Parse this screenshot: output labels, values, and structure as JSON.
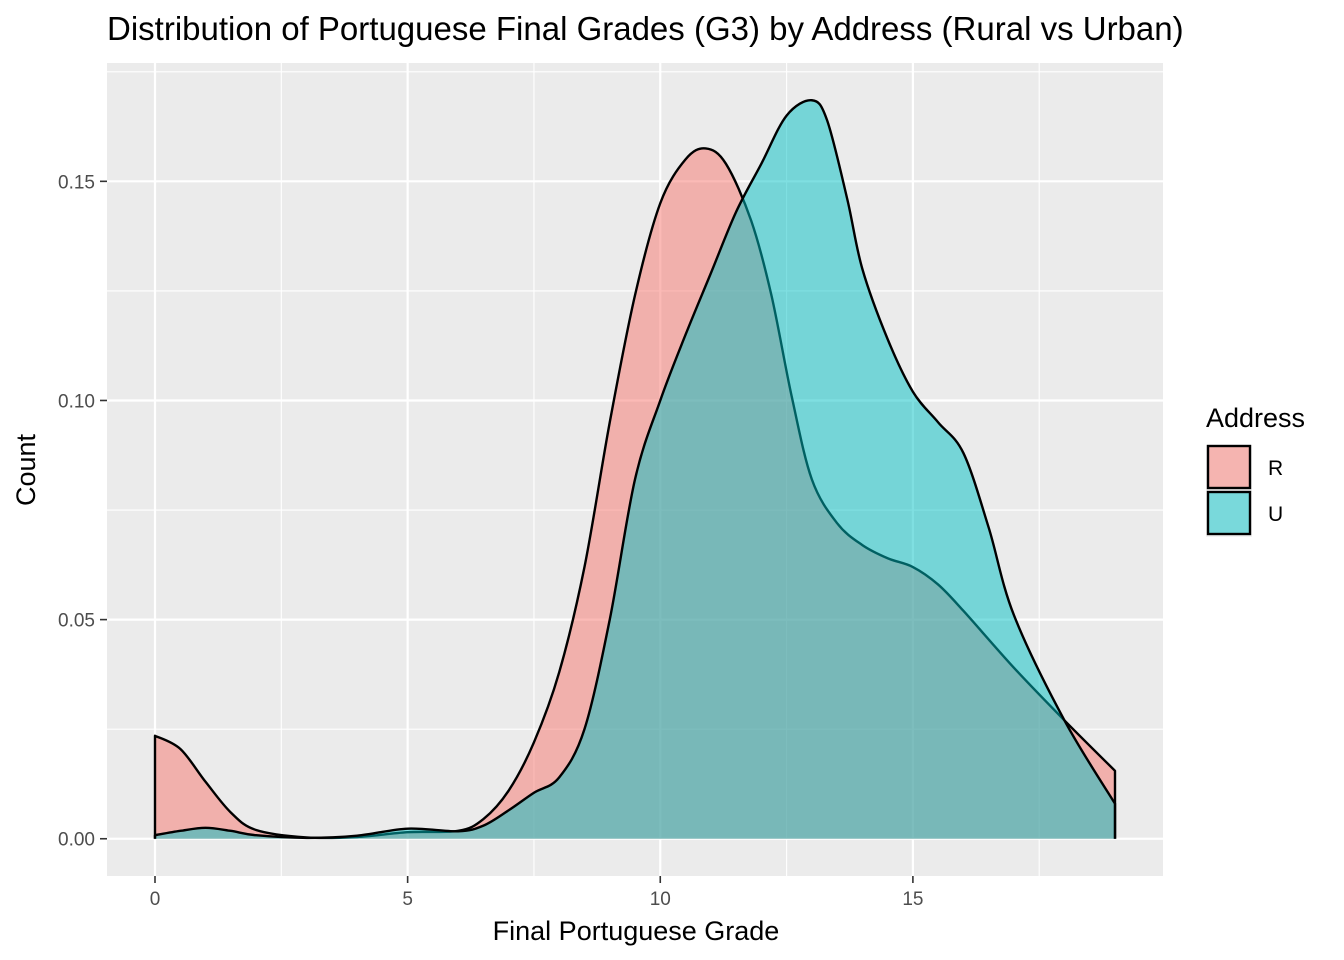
{
  "chart_data": {
    "type": "area",
    "title": "Distribution of Portuguese Final Grades (G3) by Address (Rural vs Urban)",
    "xlabel": "Final Portuguese Grade",
    "ylabel": "Count",
    "xlim": [
      -0.95,
      19.95
    ],
    "ylim": [
      -0.0085,
      0.177
    ],
    "x_ticks": [
      0,
      5,
      10,
      15
    ],
    "x_tick_labels": [
      "0",
      "5",
      "10",
      "15"
    ],
    "y_ticks": [
      0.0,
      0.05,
      0.1,
      0.15
    ],
    "y_tick_labels": [
      "0.00",
      "0.05",
      "0.10",
      "0.15"
    ],
    "grid": true,
    "legend": {
      "title": "Address",
      "placement": "right"
    },
    "series": [
      {
        "name": "R",
        "color": "#F8766D",
        "x": [
          0,
          0.5,
          1,
          1.5,
          2,
          3,
          4,
          5,
          6,
          6.5,
          7,
          7.5,
          8,
          8.5,
          9,
          9.5,
          10,
          10.5,
          10.9,
          11.3,
          11.8,
          12.2,
          12.6,
          13,
          13.5,
          14,
          14.5,
          15,
          15.5,
          16,
          17,
          18,
          19
        ],
        "y": [
          0.0235,
          0.0205,
          0.013,
          0.006,
          0.002,
          0.0003,
          0.0004,
          0.0015,
          0.0018,
          0.0045,
          0.011,
          0.022,
          0.038,
          0.062,
          0.095,
          0.124,
          0.145,
          0.155,
          0.1575,
          0.154,
          0.141,
          0.124,
          0.101,
          0.082,
          0.072,
          0.067,
          0.064,
          0.062,
          0.058,
          0.052,
          0.039,
          0.027,
          0.0155
        ]
      },
      {
        "name": "U",
        "color": "#00BFC4",
        "x": [
          0,
          0.5,
          1,
          1.5,
          2,
          3,
          4,
          5,
          6,
          6.5,
          7,
          7.5,
          8,
          8.5,
          9,
          9.5,
          10,
          10.5,
          11,
          11.5,
          12,
          12.5,
          13,
          13.3,
          13.7,
          14,
          14.5,
          15,
          15.5,
          16,
          16.5,
          17,
          18,
          19
        ],
        "y": [
          0.0008,
          0.0018,
          0.0025,
          0.0018,
          0.0008,
          0.0002,
          0.0007,
          0.0023,
          0.0017,
          0.003,
          0.0065,
          0.0105,
          0.014,
          0.025,
          0.05,
          0.082,
          0.1,
          0.115,
          0.129,
          0.143,
          0.154,
          0.165,
          0.1685,
          0.164,
          0.146,
          0.13,
          0.114,
          0.102,
          0.095,
          0.088,
          0.071,
          0.051,
          0.027,
          0.008
        ]
      }
    ]
  }
}
